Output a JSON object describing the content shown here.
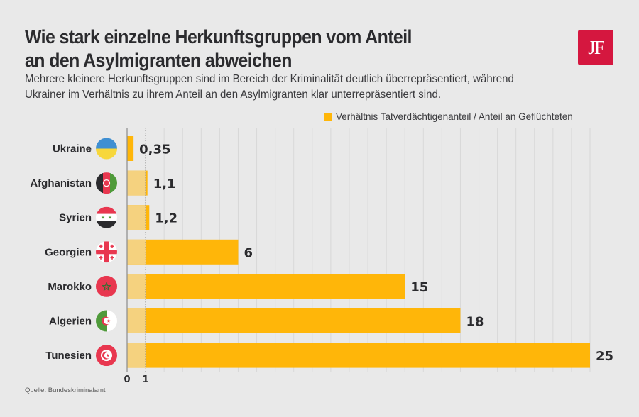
{
  "header": {
    "title_line1": "Wie stark einzelne Herkunftsgruppen vom Anteil",
    "title_line2": "an den Asylmigranten abweichen",
    "subtitle_line1": "Mehrere kleinere Herkunftsgruppen sind im Bereich der Kriminalität deutlich überrepräsentiert, während",
    "subtitle_line2": "Ukrainer im Verhältnis zu ihrem Anteil an den Asylmigranten klar unterrepräsentiert sind.",
    "logo_text": "JF",
    "logo_color": "#d5173f"
  },
  "source": "Quelle:  Bundeskriminalamt",
  "chart_data": {
    "type": "bar",
    "orientation": "horizontal",
    "title": "Wie stark einzelne Herkunftsgruppen vom Anteil an den Asylmigranten abweichen",
    "categories": [
      "Ukraine",
      "Afghanistan",
      "Syrien",
      "Georgien",
      "Marokko",
      "Algerien",
      "Tunesien"
    ],
    "flags": [
      "ukraine-flag",
      "afghanistan-flag",
      "syria-flag",
      "georgia-flag",
      "morocco-flag",
      "algeria-flag",
      "tunisia-flag"
    ],
    "series": [
      {
        "name": "Verhältnis Tatverdächtigenanteil / Anteil an Geflüchteten",
        "values": [
          0.35,
          1.1,
          1.2,
          6,
          15,
          18,
          25
        ],
        "value_labels": [
          "0,35",
          "1,1",
          "1,2",
          "6",
          "15",
          "18",
          "25"
        ],
        "color": "#ffb609"
      }
    ],
    "baseline_reference": 1,
    "baseline_shade_color": "#f5d27f",
    "xlim": [
      0,
      25
    ],
    "xticks": [
      0,
      1
    ],
    "xtick_labels": [
      "0",
      "1"
    ],
    "grid": "vertical, every 1 unit",
    "legend": "top-right",
    "xlabel": "",
    "ylabel": ""
  }
}
